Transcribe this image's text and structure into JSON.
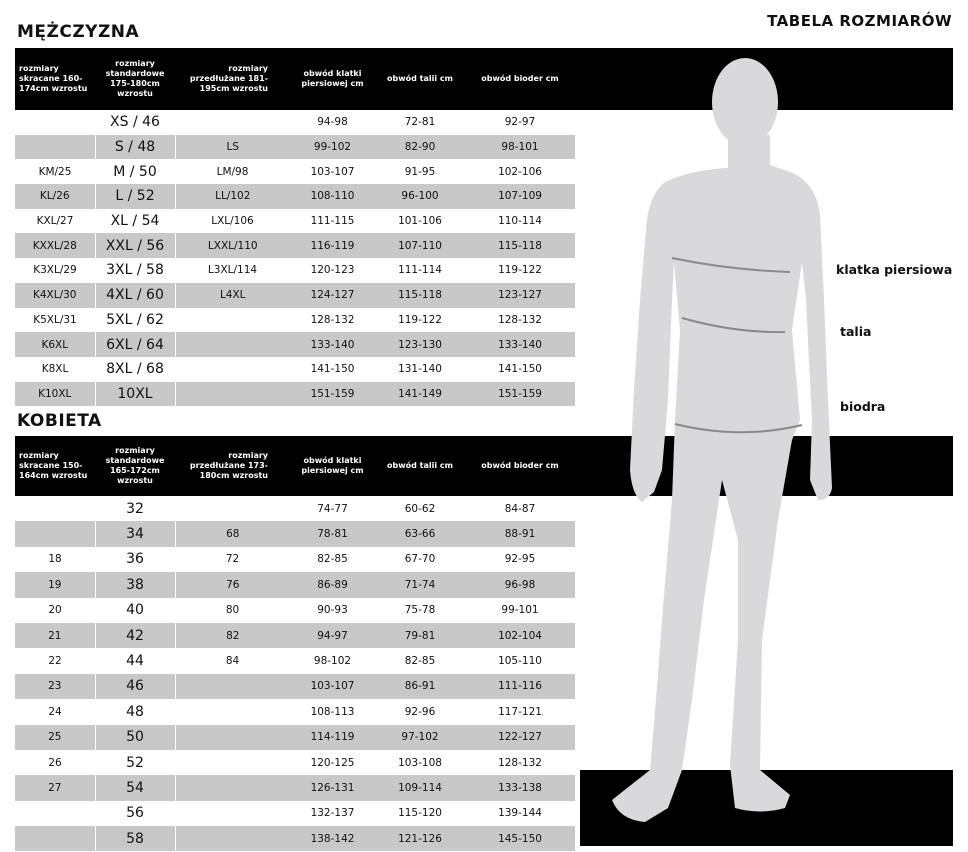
{
  "page_title": "TABELA ROZMIARÓW",
  "figure_color": "#d9d9db",
  "measure_labels": {
    "chest": "klatka piersiowa",
    "waist": "talia",
    "hips": "biodra"
  },
  "men": {
    "title": "MĘŻCZYZNA",
    "headers": [
      "rozmiary skracane 160-174cm wzrostu",
      "rozmiary standardowe 175-180cm wzrostu",
      "rozmiary przedłużane 181-195cm wzrostu",
      "obwód klatki piersiowej cm",
      "obwód talii cm",
      "obwód bioder cm"
    ],
    "rows": [
      [
        "",
        "XS / 46",
        "",
        "94-98",
        "72-81",
        "92-97"
      ],
      [
        "",
        "S / 48",
        "LS",
        "99-102",
        "82-90",
        "98-101"
      ],
      [
        "KM/25",
        "M / 50",
        "LM/98",
        "103-107",
        "91-95",
        "102-106"
      ],
      [
        "KL/26",
        "L / 52",
        "LL/102",
        "108-110",
        "96-100",
        "107-109"
      ],
      [
        "KXL/27",
        "XL / 54",
        "LXL/106",
        "111-115",
        "101-106",
        "110-114"
      ],
      [
        "KXXL/28",
        "XXL / 56",
        "LXXL/110",
        "116-119",
        "107-110",
        "115-118"
      ],
      [
        "K3XL/29",
        "3XL / 58",
        "L3XL/114",
        "120-123",
        "111-114",
        "119-122"
      ],
      [
        "K4XL/30",
        "4XL / 60",
        "L4XL",
        "124-127",
        "115-118",
        "123-127"
      ],
      [
        "K5XL/31",
        "5XL / 62",
        "",
        "128-132",
        "119-122",
        "128-132"
      ],
      [
        "K6XL",
        "6XL / 64",
        "",
        "133-140",
        "123-130",
        "133-140"
      ],
      [
        "K8XL",
        "8XL / 68",
        "",
        "141-150",
        "131-140",
        "141-150"
      ],
      [
        "K10XL",
        "10XL",
        "",
        "151-159",
        "141-149",
        "151-159"
      ]
    ]
  },
  "women": {
    "title": "KOBIETA",
    "headers": [
      "rozmiary skracane 150-164cm wzrostu",
      "rozmiary standardowe 165-172cm wzrostu",
      "rozmiary przedłużane 173-180cm wzrostu",
      "obwód klatki piersiowej cm",
      "obwód talii cm",
      "obwód bioder cm"
    ],
    "rows": [
      [
        "",
        "32",
        "",
        "74-77",
        "60-62",
        "84-87"
      ],
      [
        "",
        "34",
        "68",
        "78-81",
        "63-66",
        "88-91"
      ],
      [
        "18",
        "36",
        "72",
        "82-85",
        "67-70",
        "92-95"
      ],
      [
        "19",
        "38",
        "76",
        "86-89",
        "71-74",
        "96-98"
      ],
      [
        "20",
        "40",
        "80",
        "90-93",
        "75-78",
        "99-101"
      ],
      [
        "21",
        "42",
        "82",
        "94-97",
        "79-81",
        "102-104"
      ],
      [
        "22",
        "44",
        "84",
        "98-102",
        "82-85",
        "105-110"
      ],
      [
        "23",
        "46",
        "",
        "103-107",
        "86-91",
        "111-116"
      ],
      [
        "24",
        "48",
        "",
        "108-113",
        "92-96",
        "117-121"
      ],
      [
        "25",
        "50",
        "",
        "114-119",
        "97-102",
        "122-127"
      ],
      [
        "26",
        "52",
        "",
        "120-125",
        "103-108",
        "128-132"
      ],
      [
        "27",
        "54",
        "",
        "126-131",
        "109-114",
        "133-138"
      ],
      [
        "",
        "56",
        "",
        "132-137",
        "115-120",
        "139-144"
      ],
      [
        "",
        "58",
        "",
        "138-142",
        "121-126",
        "145-150"
      ]
    ]
  }
}
